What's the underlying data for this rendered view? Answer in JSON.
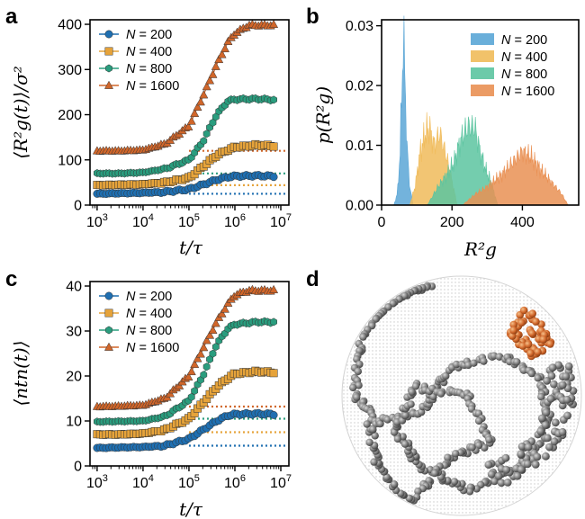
{
  "panels": {
    "a": {
      "letter": "a",
      "ylabel": "⟨R²g(t)⟩/σ²",
      "xlabel": "t/τ"
    },
    "b": {
      "letter": "b",
      "ylabel": "p(R²g)",
      "xlabel": "R²g"
    },
    "c": {
      "letter": "c",
      "ylabel": "⟨ntn(t)⟩",
      "xlabel": "t/τ"
    },
    "d": {
      "letter": "d"
    }
  },
  "colors": {
    "N200": "#1f6fb1",
    "N400": "#e6a33a",
    "N800": "#2a9d7e",
    "N1600": "#d0662a",
    "hist200": "#5aa6d6",
    "hist400": "#f0bb5a",
    "hist800": "#5cc4a0",
    "hist1600": "#e99053"
  },
  "chart_data": [
    {
      "panel": "a",
      "type": "line",
      "xlabel": "t/τ",
      "ylabel": "⟨R²g(t)⟩/σ²",
      "xscale": "log",
      "xlim": [
        700,
        15000000
      ],
      "ylim": [
        0,
        410
      ],
      "xticks": [
        1000,
        10000,
        100000,
        1000000,
        10000000
      ],
      "xtick_labels": [
        "10³",
        "10⁴",
        "10⁵",
        "10⁶",
        "10⁷"
      ],
      "yticks": [
        0,
        100,
        200,
        300,
        400
      ],
      "ytick_labels": [
        "0",
        "100",
        "200",
        "300",
        "400"
      ],
      "legend": "top-left",
      "series": [
        {
          "name": "N = 200",
          "marker": "circle",
          "color": "#1f6fb1",
          "reference": 25,
          "points": [
            [
              1000,
              25
            ],
            [
              3000,
              26
            ],
            [
              10000,
              27
            ],
            [
              30000,
              29
            ],
            [
              100000,
              35
            ],
            [
              200000,
              45
            ],
            [
              400000,
              56
            ],
            [
              700000,
              62
            ],
            [
              1000000,
              64
            ],
            [
              3000000,
              65
            ],
            [
              7000000,
              64
            ]
          ]
        },
        {
          "name": "N = 400",
          "marker": "square",
          "color": "#e6a33a",
          "reference": 44,
          "points": [
            [
              1000,
              44
            ],
            [
              3000,
              45
            ],
            [
              10000,
              46
            ],
            [
              30000,
              50
            ],
            [
              100000,
              60
            ],
            [
              200000,
              85
            ],
            [
              400000,
              110
            ],
            [
              700000,
              122
            ],
            [
              1000000,
              128
            ],
            [
              3000000,
              133
            ],
            [
              7000000,
              131
            ]
          ]
        },
        {
          "name": "N = 800",
          "marker": "hexagon",
          "color": "#2a9d7e",
          "reference": 70,
          "points": [
            [
              1000,
              70
            ],
            [
              3000,
              70
            ],
            [
              10000,
              72
            ],
            [
              30000,
              80
            ],
            [
              100000,
              100
            ],
            [
              200000,
              140
            ],
            [
              400000,
              200
            ],
            [
              700000,
              230
            ],
            [
              1000000,
              234
            ],
            [
              3000000,
              235
            ],
            [
              7000000,
              233
            ]
          ]
        },
        {
          "name": "N = 1600",
          "marker": "triangle",
          "color": "#d0662a",
          "reference": 120,
          "points": [
            [
              1000,
              120
            ],
            [
              3000,
              120
            ],
            [
              10000,
              122
            ],
            [
              30000,
              135
            ],
            [
              100000,
              175
            ],
            [
              200000,
              240
            ],
            [
              400000,
              310
            ],
            [
              700000,
              360
            ],
            [
              1000000,
              380
            ],
            [
              2000000,
              398
            ],
            [
              7000000,
              398
            ]
          ]
        }
      ]
    },
    {
      "panel": "b",
      "type": "area",
      "xlabel": "R²g",
      "ylabel": "p(R²g)",
      "xlim": [
        0,
        560
      ],
      "ylim": [
        0,
        0.031
      ],
      "xticks": [
        0,
        200,
        400
      ],
      "xtick_labels": [
        "0",
        "200",
        "400"
      ],
      "yticks": [
        0,
        0.01,
        0.02,
        0.03
      ],
      "ytick_labels": [
        "0.00",
        "0.01",
        "0.02",
        "0.03"
      ],
      "legend": "top-right",
      "series": [
        {
          "name": "N = 200",
          "color": "#5aa6d6",
          "points": [
            [
              35,
              0
            ],
            [
              45,
              0.002
            ],
            [
              52,
              0.008
            ],
            [
              57,
              0.018
            ],
            [
              62,
              0.029
            ],
            [
              67,
              0.02
            ],
            [
              72,
              0.01
            ],
            [
              80,
              0.003
            ],
            [
              90,
              0
            ]
          ]
        },
        {
          "name": "N = 400",
          "color": "#f0bb5a",
          "points": [
            [
              80,
              0
            ],
            [
              95,
              0.003
            ],
            [
              110,
              0.009
            ],
            [
              125,
              0.012
            ],
            [
              135,
              0.013
            ],
            [
              150,
              0.01
            ],
            [
              165,
              0.012
            ],
            [
              185,
              0.008
            ],
            [
              200,
              0.004
            ],
            [
              215,
              0
            ]
          ]
        },
        {
          "name": "N = 800",
          "color": "#5cc4a0",
          "points": [
            [
              130,
              0
            ],
            [
              160,
              0.003
            ],
            [
              185,
              0.005
            ],
            [
              205,
              0.007
            ],
            [
              225,
              0.011
            ],
            [
              245,
              0.013
            ],
            [
              265,
              0.013
            ],
            [
              280,
              0.009
            ],
            [
              295,
              0.006
            ],
            [
              310,
              0.004
            ],
            [
              330,
              0
            ]
          ]
        },
        {
          "name": "N = 1600",
          "color": "#e99053",
          "points": [
            [
              230,
              0
            ],
            [
              270,
              0.002
            ],
            [
              300,
              0.003
            ],
            [
              340,
              0.005
            ],
            [
              370,
              0.007
            ],
            [
              400,
              0.009
            ],
            [
              425,
              0.008
            ],
            [
              450,
              0.006
            ],
            [
              480,
              0.004
            ],
            [
              510,
              0.002
            ],
            [
              530,
              0
            ]
          ]
        }
      ]
    },
    {
      "panel": "c",
      "type": "line",
      "xlabel": "t/τ",
      "ylabel": "⟨ntn(t)⟩",
      "xscale": "log",
      "xlim": [
        700,
        15000000
      ],
      "ylim": [
        0,
        41
      ],
      "xticks": [
        1000,
        10000,
        100000,
        1000000,
        10000000
      ],
      "xtick_labels": [
        "10³",
        "10⁴",
        "10⁵",
        "10⁶",
        "10⁷"
      ],
      "yticks": [
        0,
        10,
        20,
        30,
        40
      ],
      "ytick_labels": [
        "0",
        "10",
        "20",
        "30",
        "40"
      ],
      "legend": "top-left",
      "series": [
        {
          "name": "N = 200",
          "marker": "circle",
          "color": "#1f6fb1",
          "reference": 4.5,
          "points": [
            [
              1000,
              4.0
            ],
            [
              3000,
              4.1
            ],
            [
              10000,
              4.2
            ],
            [
              30000,
              4.5
            ],
            [
              100000,
              6.0
            ],
            [
              200000,
              8.0
            ],
            [
              400000,
              10.0
            ],
            [
              700000,
              11.2
            ],
            [
              1000000,
              11.5
            ],
            [
              3000000,
              11.6
            ],
            [
              7000000,
              11.5
            ]
          ]
        },
        {
          "name": "N = 400",
          "marker": "square",
          "color": "#e6a33a",
          "reference": 7.5,
          "points": [
            [
              1000,
              7.0
            ],
            [
              3000,
              7.0
            ],
            [
              10000,
              7.2
            ],
            [
              30000,
              8.0
            ],
            [
              100000,
              10.5
            ],
            [
              200000,
              14.0
            ],
            [
              400000,
              17.5
            ],
            [
              700000,
              19.5
            ],
            [
              1000000,
              20.5
            ],
            [
              3000000,
              21.0
            ],
            [
              7000000,
              20.8
            ]
          ]
        },
        {
          "name": "N = 800",
          "marker": "hexagon",
          "color": "#2a9d7e",
          "reference": 10.5,
          "points": [
            [
              1000,
              9.8
            ],
            [
              3000,
              9.9
            ],
            [
              10000,
              10.0
            ],
            [
              30000,
              11.0
            ],
            [
              100000,
              14.5
            ],
            [
              200000,
              20.0
            ],
            [
              400000,
              27.0
            ],
            [
              700000,
              30.5
            ],
            [
              1000000,
              31.5
            ],
            [
              3000000,
              32.0
            ],
            [
              7000000,
              32.0
            ]
          ]
        },
        {
          "name": "N = 1600",
          "marker": "triangle",
          "color": "#d0662a",
          "reference": 13.2,
          "points": [
            [
              1000,
              13.2
            ],
            [
              3000,
              13.3
            ],
            [
              10000,
              13.5
            ],
            [
              30000,
              15.0
            ],
            [
              100000,
              20.0
            ],
            [
              200000,
              26.0
            ],
            [
              400000,
              32.0
            ],
            [
              700000,
              36.0
            ],
            [
              1000000,
              38.0
            ],
            [
              2000000,
              39.0
            ],
            [
              7000000,
              39.0
            ]
          ]
        }
      ]
    }
  ]
}
